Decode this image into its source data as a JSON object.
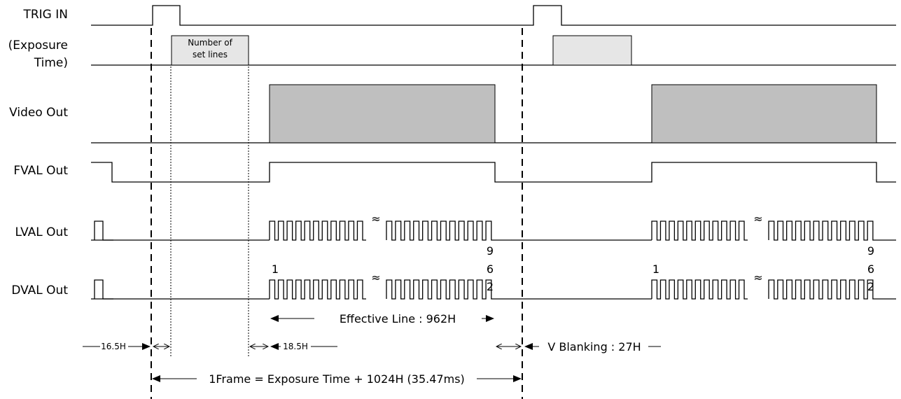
{
  "signals": {
    "trig_in": "TRIG IN",
    "exposure_line1": "(Exposure",
    "exposure_line2": "Time)",
    "video_out": "Video Out",
    "fval_out": "FVAL Out",
    "lval_out": "LVAL Out",
    "dval_out": "DVAL Out"
  },
  "exposure_box": {
    "line1": "Number of",
    "line2": "set lines"
  },
  "line_numbers": {
    "first": "1",
    "last_digits": [
      "9",
      "6",
      "2"
    ]
  },
  "break_symbol": "≈",
  "annotations": {
    "pre_trigger": "16.5H",
    "post_exposure": "18.5H",
    "effective_line": "Effective Line : 962H",
    "v_blanking": "V Blanking : 27H",
    "frame": "1Frame = Exposure Time + 1024H (35.47ms)"
  },
  "colors": {
    "video_fill": "#bfbfbf",
    "exposure_fill": "#e6e6e6",
    "line": "#000000",
    "background": "#ffffff"
  }
}
